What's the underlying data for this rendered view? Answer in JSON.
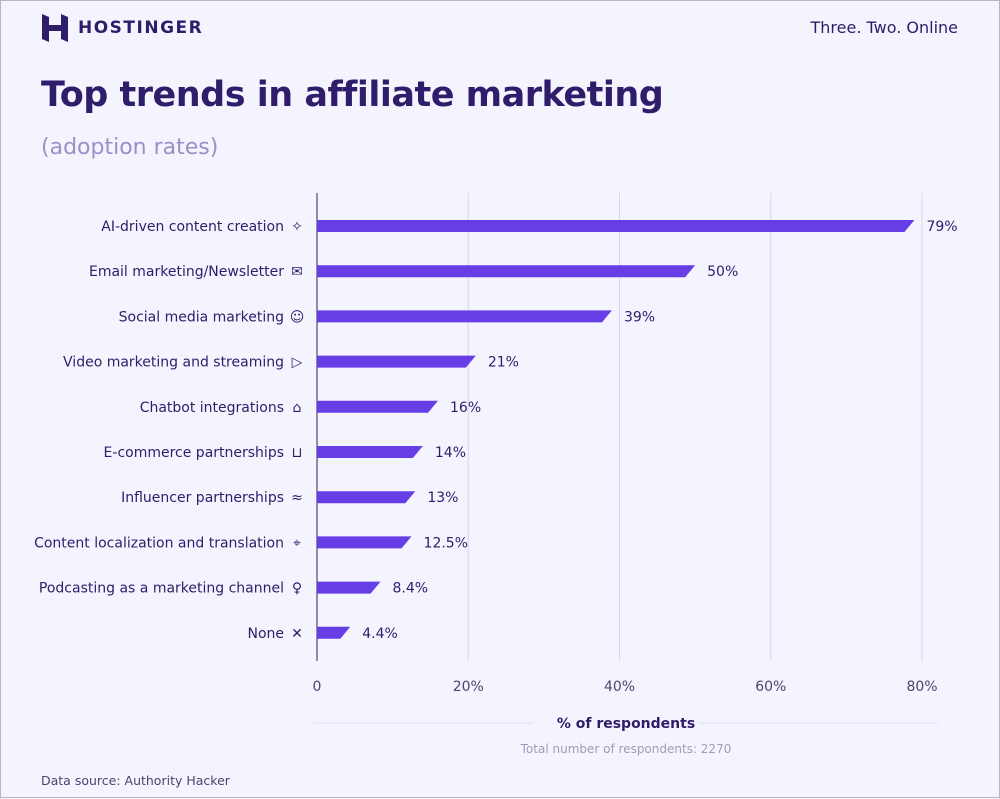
{
  "header": {
    "brand": "HOSTINGER",
    "tagline": "Three. Two. Online"
  },
  "footer": {
    "source": "Data source: Authority Hacker"
  },
  "colors": {
    "bar": "#673de6",
    "text": "#2f1c6a",
    "grid": "#d8d4f2",
    "background": "#f4f4fe"
  },
  "chart_data": {
    "type": "bar",
    "orientation": "horizontal",
    "title": "Top trends in affiliate marketing",
    "subtitle": "(adoption rates)",
    "xlabel": "% of respondents",
    "note": "Total number of respondents: 2270",
    "xlim": [
      0,
      80
    ],
    "xticks": [
      "0",
      "20%",
      "40%",
      "60%",
      "80%"
    ],
    "grid": true,
    "categories": [
      "AI-driven content creation",
      "Email marketing/Newsletter",
      "Social media marketing",
      "Video marketing and streaming",
      "Chatbot integrations",
      "E-commerce partnerships",
      "Influencer partnerships",
      "Content localization and translation",
      "Podcasting as a marketing channel",
      "None"
    ],
    "icons": [
      "lightbulb-sparkle-icon",
      "envelope-icon",
      "smiley-chat-icon",
      "video-play-icon",
      "robot-icon",
      "shopping-basket-icon",
      "handshake-icon",
      "location-pin-icon",
      "microphone-icon",
      "close-x-icon"
    ],
    "values": [
      79,
      50,
      39,
      21,
      16,
      14,
      13,
      12.5,
      8.4,
      4.4
    ],
    "labels": [
      "79%",
      "50%",
      "39%",
      "21%",
      "16%",
      "14%",
      "13%",
      "12.5%",
      "8.4%",
      "4.4%"
    ]
  }
}
